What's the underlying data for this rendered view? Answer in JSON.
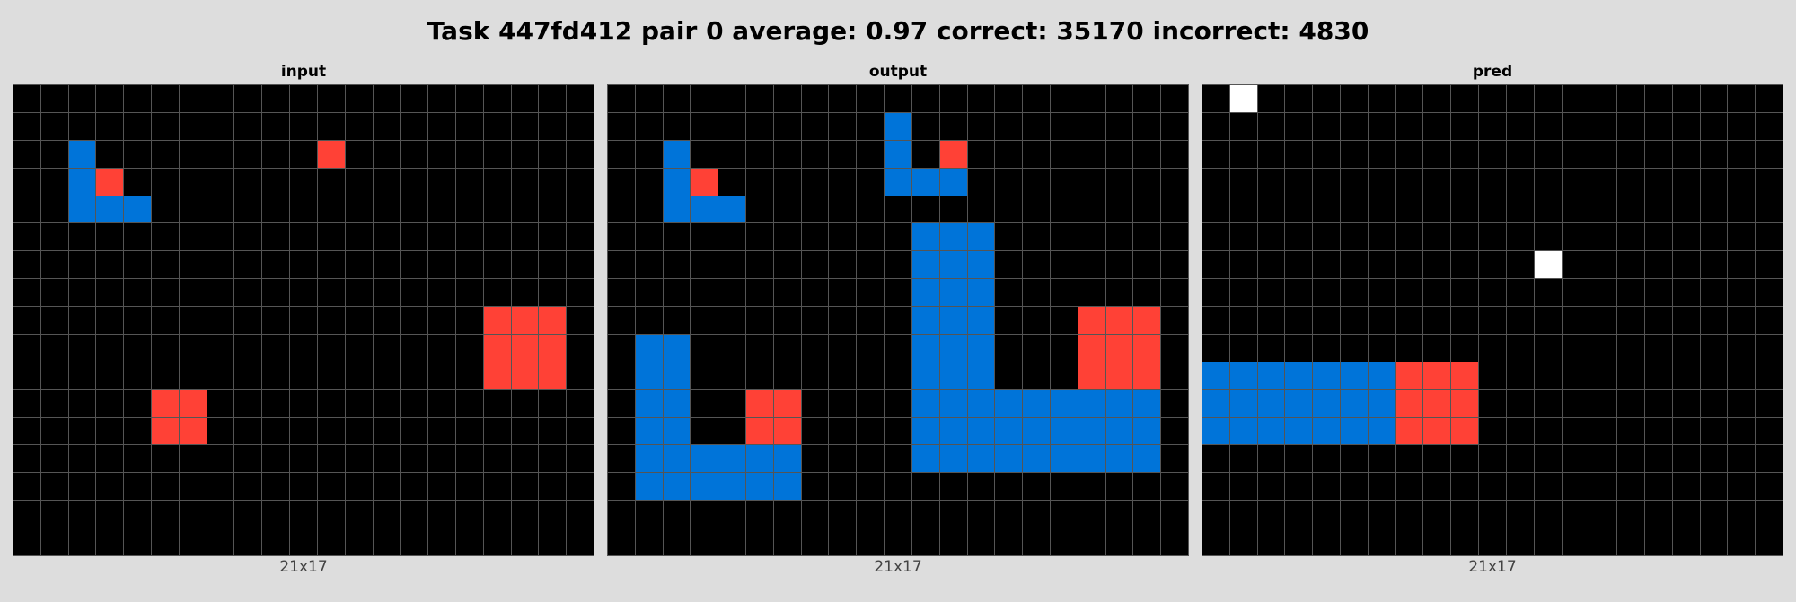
{
  "title": "Task 447fd412 pair 0 average: 0.97 correct: 35170 incorrect: 4830",
  "palette": {
    "0": "#000000",
    "1": "#0074D9",
    "2": "#FF4136",
    "5": "#FFFFFF"
  },
  "panels": [
    {
      "label": "input",
      "dims": "21x17",
      "grid": [
        "000000000000000000000",
        "000000000000000000000",
        "001000000002000000000",
        "001200000000000000000",
        "001110000000000000000",
        "000000000000000000000",
        "000000000000000000000",
        "000000000000000000000",
        "000000000000000002220",
        "000000000000000002220",
        "000000000000000002220",
        "000002200000000000000",
        "000002200000000000000",
        "000000000000000000000",
        "000000000000000000000",
        "000000000000000000000",
        "000000000000000000000"
      ]
    },
    {
      "label": "output",
      "dims": "21x17",
      "grid": [
        "000000000000000000000",
        "000000000010000000000",
        "001000000010200000000",
        "001200000011100000000",
        "001110000000000000000",
        "000000000001110000000",
        "000000000001110000000",
        "000000000001110000000",
        "000000000001110002220",
        "011000000001110002220",
        "011000000001110002220",
        "011002200001111111110",
        "011002200001111111110",
        "011111100001111111110",
        "011111100000000000000",
        "000000000000000000000",
        "000000000000000000000"
      ]
    },
    {
      "label": "pred",
      "dims": "21x17",
      "grid": [
        "050000000000000000000",
        "000000000000000000000",
        "000000000000000000000",
        "000000000000000000000",
        "000000000000000000000",
        "000000000000000000000",
        "000000000000500000000",
        "000000000000000000000",
        "000000000000000000000",
        "000000000000000000000",
        "111111122200000000000",
        "111111122200000000000",
        "111111122200000000000",
        "000000000000000000000",
        "000000000000000000000",
        "000000000000000000000",
        "000000000000000000000"
      ]
    }
  ]
}
